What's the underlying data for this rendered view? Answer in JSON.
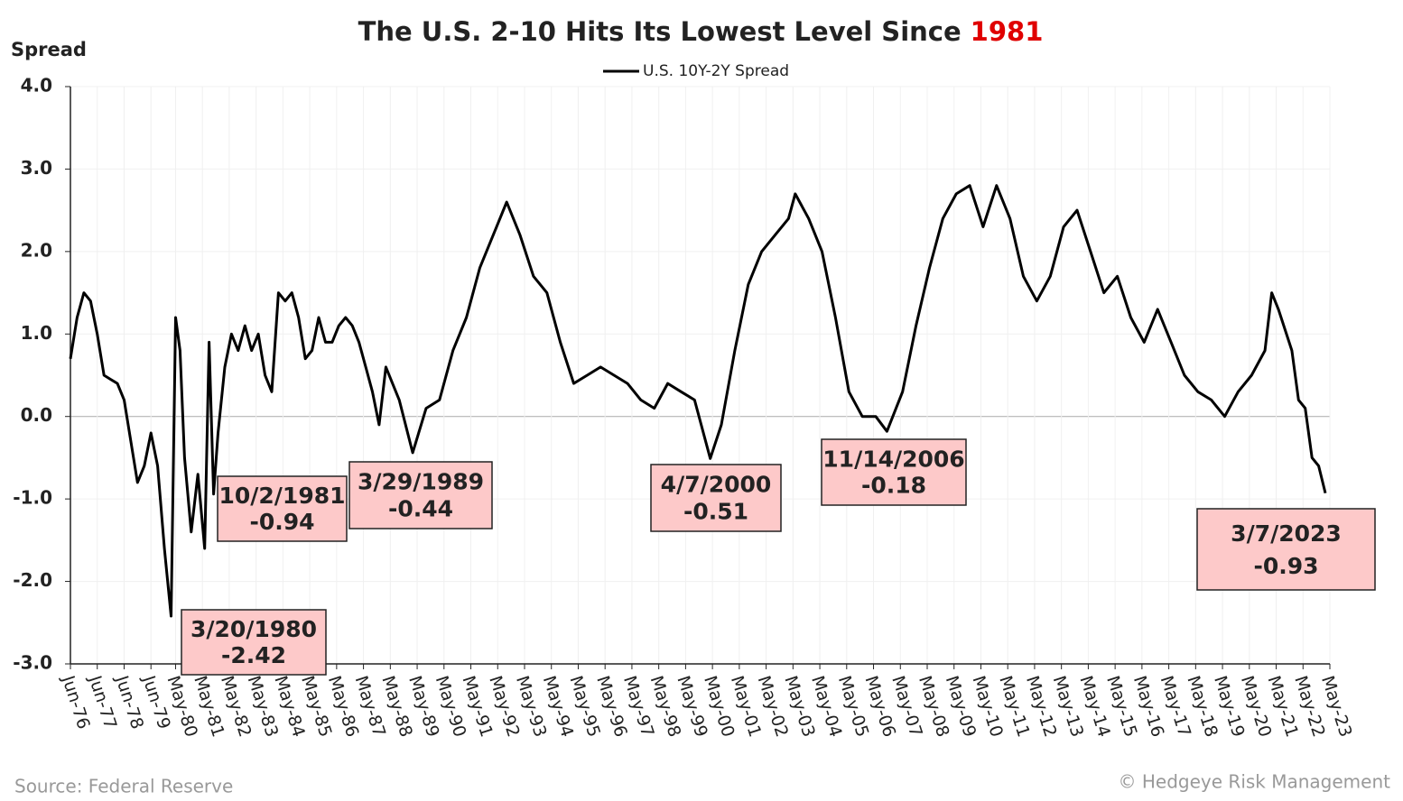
{
  "chart_data": {
    "type": "line",
    "title": "The U.S. 2-10 Hits Its Lowest Level Since",
    "title_highlight": "1981",
    "title_highlight_color": "#e00000",
    "y_label": "Spread",
    "source": "Source: Federal Reserve",
    "credit": "© Hedgeye Risk Management",
    "grid": true,
    "legend": "top",
    "x": [
      "1976-06",
      "1976-09",
      "1976-12",
      "1977-03",
      "1977-06",
      "1977-09",
      "1977-12",
      "1978-03",
      "1978-06",
      "1978-09",
      "1978-12",
      "1979-03",
      "1979-06",
      "1979-09",
      "1979-12",
      "1980-03",
      "1980-05",
      "1980-07",
      "1980-09",
      "1980-12",
      "1981-03",
      "1981-06",
      "1981-08",
      "1981-10",
      "1981-12",
      "1982-03",
      "1982-06",
      "1982-09",
      "1982-12",
      "1983-03",
      "1983-06",
      "1983-09",
      "1983-12",
      "1984-03",
      "1984-06",
      "1984-09",
      "1984-12",
      "1985-03",
      "1985-06",
      "1985-09",
      "1985-12",
      "1986-03",
      "1986-06",
      "1986-09",
      "1986-12",
      "1987-03",
      "1987-06",
      "1987-09",
      "1987-12",
      "1988-03",
      "1988-09",
      "1989-03",
      "1989-09",
      "1990-03",
      "1990-09",
      "1991-03",
      "1991-09",
      "1992-03",
      "1992-09",
      "1993-03",
      "1993-09",
      "1994-03",
      "1994-09",
      "1995-03",
      "1995-09",
      "1996-03",
      "1996-09",
      "1997-03",
      "1997-09",
      "1998-03",
      "1998-09",
      "1999-03",
      "1999-09",
      "2000-04",
      "2000-09",
      "2001-03",
      "2001-09",
      "2002-03",
      "2002-09",
      "2003-03",
      "2003-06",
      "2003-12",
      "2004-06",
      "2004-12",
      "2005-06",
      "2005-12",
      "2006-06",
      "2006-11",
      "2007-06",
      "2007-12",
      "2008-06",
      "2008-12",
      "2009-06",
      "2009-12",
      "2010-06",
      "2010-12",
      "2011-06",
      "2011-12",
      "2012-06",
      "2012-12",
      "2013-06",
      "2013-12",
      "2014-06",
      "2014-12",
      "2015-06",
      "2015-12",
      "2016-06",
      "2016-12",
      "2017-06",
      "2017-12",
      "2018-06",
      "2018-12",
      "2019-06",
      "2019-12",
      "2020-06",
      "2020-12",
      "2021-03",
      "2021-06",
      "2021-12",
      "2022-03",
      "2022-06",
      "2022-09",
      "2022-12",
      "2023-03"
    ],
    "series": [
      {
        "name": "U.S. 10Y-2Y Spread",
        "color": "#000000",
        "values": [
          0.7,
          1.2,
          1.5,
          1.4,
          1.0,
          0.5,
          0.45,
          0.4,
          0.2,
          -0.3,
          -0.8,
          -0.6,
          -0.2,
          -0.6,
          -1.6,
          -2.42,
          1.2,
          0.8,
          -0.5,
          -1.4,
          -0.7,
          -1.6,
          0.9,
          -0.94,
          -0.2,
          0.6,
          1.0,
          0.8,
          1.1,
          0.8,
          1.0,
          0.5,
          0.3,
          1.5,
          1.4,
          1.5,
          1.2,
          0.7,
          0.8,
          1.2,
          0.9,
          0.9,
          1.1,
          1.2,
          1.1,
          0.9,
          0.6,
          0.3,
          -0.1,
          0.6,
          0.2,
          -0.44,
          0.1,
          0.2,
          0.8,
          1.2,
          1.8,
          2.2,
          2.6,
          2.2,
          1.7,
          1.5,
          0.9,
          0.4,
          0.5,
          0.6,
          0.5,
          0.4,
          0.2,
          0.1,
          0.4,
          0.3,
          0.2,
          -0.51,
          -0.1,
          0.8,
          1.6,
          2.0,
          2.2,
          2.4,
          2.7,
          2.4,
          2.0,
          1.2,
          0.3,
          0.0,
          0.0,
          -0.18,
          0.3,
          1.1,
          1.8,
          2.4,
          2.7,
          2.8,
          2.3,
          2.8,
          2.4,
          1.7,
          1.4,
          1.7,
          2.3,
          2.5,
          2.0,
          1.5,
          1.7,
          1.2,
          0.9,
          1.3,
          0.9,
          0.5,
          0.3,
          0.2,
          0.0,
          0.3,
          0.5,
          0.8,
          1.5,
          1.3,
          0.8,
          0.2,
          0.1,
          -0.5,
          -0.6,
          -0.93
        ]
      }
    ],
    "xlim": [
      "1976-06",
      "2023-05"
    ],
    "xticks": [
      {
        "value": "1976-06",
        "label": "Jun-76"
      },
      {
        "value": "1977-06",
        "label": "Jun-77"
      },
      {
        "value": "1978-06",
        "label": "Jun-78"
      },
      {
        "value": "1979-06",
        "label": "Jun-79"
      },
      {
        "value": "1980-05",
        "label": "May-80"
      },
      {
        "value": "1981-05",
        "label": "May-81"
      },
      {
        "value": "1982-05",
        "label": "May-82"
      },
      {
        "value": "1983-05",
        "label": "May-83"
      },
      {
        "value": "1984-05",
        "label": "May-84"
      },
      {
        "value": "1985-05",
        "label": "May-85"
      },
      {
        "value": "1986-05",
        "label": "May-86"
      },
      {
        "value": "1987-05",
        "label": "May-87"
      },
      {
        "value": "1988-05",
        "label": "May-88"
      },
      {
        "value": "1989-05",
        "label": "May-89"
      },
      {
        "value": "1990-05",
        "label": "May-90"
      },
      {
        "value": "1991-05",
        "label": "May-91"
      },
      {
        "value": "1992-05",
        "label": "May-92"
      },
      {
        "value": "1993-05",
        "label": "May-93"
      },
      {
        "value": "1994-05",
        "label": "May-94"
      },
      {
        "value": "1995-05",
        "label": "May-95"
      },
      {
        "value": "1996-05",
        "label": "May-96"
      },
      {
        "value": "1997-05",
        "label": "May-97"
      },
      {
        "value": "1998-05",
        "label": "May-98"
      },
      {
        "value": "1999-05",
        "label": "May-99"
      },
      {
        "value": "2000-05",
        "label": "May-00"
      },
      {
        "value": "2001-05",
        "label": "May-01"
      },
      {
        "value": "2002-05",
        "label": "May-02"
      },
      {
        "value": "2003-05",
        "label": "May-03"
      },
      {
        "value": "2004-05",
        "label": "May-04"
      },
      {
        "value": "2005-05",
        "label": "May-05"
      },
      {
        "value": "2006-05",
        "label": "May-06"
      },
      {
        "value": "2007-05",
        "label": "May-07"
      },
      {
        "value": "2008-05",
        "label": "May-08"
      },
      {
        "value": "2009-05",
        "label": "May-09"
      },
      {
        "value": "2010-05",
        "label": "May-10"
      },
      {
        "value": "2011-05",
        "label": "May-11"
      },
      {
        "value": "2012-05",
        "label": "May-12"
      },
      {
        "value": "2013-05",
        "label": "May-13"
      },
      {
        "value": "2014-05",
        "label": "May-14"
      },
      {
        "value": "2015-05",
        "label": "May-15"
      },
      {
        "value": "2016-05",
        "label": "May-16"
      },
      {
        "value": "2017-05",
        "label": "May-17"
      },
      {
        "value": "2018-05",
        "label": "May-18"
      },
      {
        "value": "2019-05",
        "label": "May-19"
      },
      {
        "value": "2020-05",
        "label": "May-20"
      },
      {
        "value": "2021-05",
        "label": "May-21"
      },
      {
        "value": "2022-05",
        "label": "May-22"
      },
      {
        "value": "2023-05",
        "label": "May-23"
      }
    ],
    "ylim": [
      -3,
      4
    ],
    "yticks": [
      {
        "value": -3,
        "label": "-3.0"
      },
      {
        "value": -2,
        "label": "-2.0"
      },
      {
        "value": -1,
        "label": "-1.0"
      },
      {
        "value": 0,
        "label": "0.0"
      },
      {
        "value": 1,
        "label": "1.0"
      },
      {
        "value": 2,
        "label": "2.0"
      },
      {
        "value": 3,
        "label": "3.0"
      },
      {
        "value": 4,
        "label": "4.0"
      }
    ],
    "annotations": [
      {
        "label": "3/20/1980",
        "value": -2.42
      },
      {
        "label": "10/2/1981",
        "value": -0.94
      },
      {
        "label": "3/29/1989",
        "value": -0.44
      },
      {
        "label": "4/7/2000",
        "value": -0.51
      },
      {
        "label": "11/14/2006",
        "value": -0.18
      },
      {
        "label": "3/7/2023",
        "value": -0.93
      }
    ]
  }
}
